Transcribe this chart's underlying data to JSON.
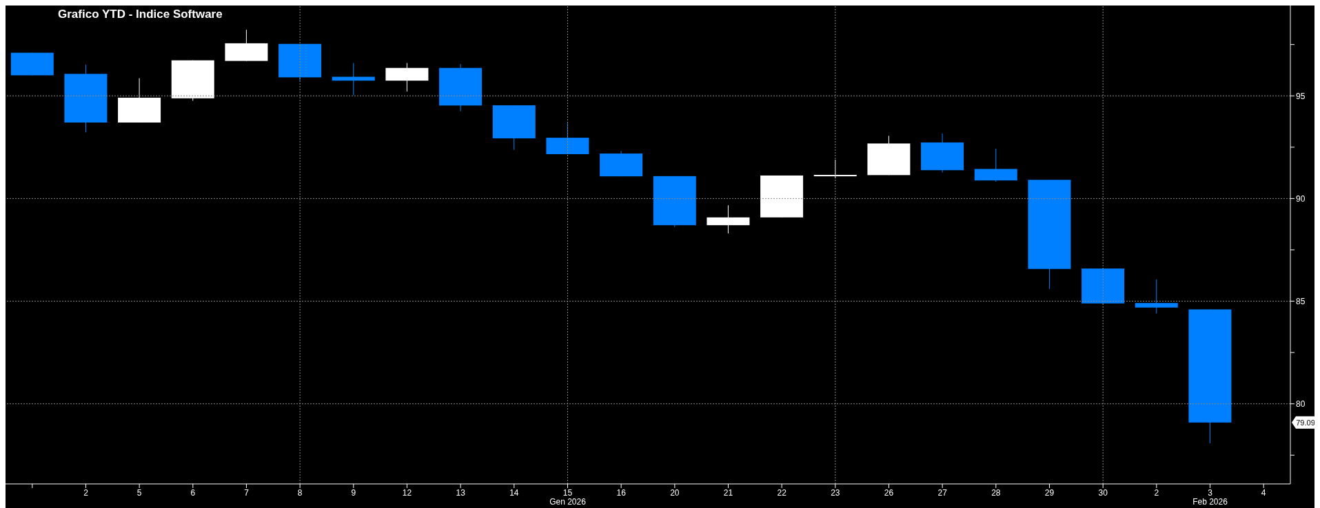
{
  "chart_data": {
    "type": "candlestick",
    "title": "Grafico YTD - Indice Software",
    "categories": [
      null,
      "2",
      "5",
      "6",
      "7",
      "8",
      "9",
      "12",
      "13",
      "14",
      "15",
      "16",
      "20",
      "21",
      "22",
      "23",
      "26",
      "27",
      "28",
      "29",
      "30",
      "2",
      "3",
      "4"
    ],
    "ohlc": [
      [
        97.1,
        97.1,
        96.0,
        96.0
      ],
      [
        96.07,
        96.52,
        93.22,
        93.7
      ],
      [
        93.7,
        95.86,
        93.7,
        94.91
      ],
      [
        94.88,
        96.73,
        94.76,
        96.73
      ],
      [
        96.7,
        98.22,
        96.7,
        97.56
      ],
      [
        97.53,
        97.53,
        95.74,
        95.9
      ],
      [
        95.93,
        96.6,
        95.03,
        95.74
      ],
      [
        95.74,
        96.6,
        95.21,
        96.36
      ],
      [
        96.36,
        96.55,
        94.25,
        94.53
      ],
      [
        94.54,
        94.54,
        92.37,
        92.93
      ],
      [
        92.96,
        93.7,
        92.16,
        92.16
      ],
      [
        92.19,
        92.31,
        91.08,
        91.08
      ],
      [
        91.09,
        91.09,
        88.62,
        88.7
      ],
      [
        88.7,
        89.67,
        88.3,
        89.08
      ],
      [
        89.08,
        91.12,
        89.08,
        91.12
      ],
      [
        91.15,
        91.89,
        90.98,
        91.15
      ],
      [
        91.14,
        93.05,
        91.14,
        92.68
      ],
      [
        92.73,
        93.16,
        91.27,
        91.38
      ],
      [
        91.44,
        92.43,
        90.82,
        90.88
      ],
      [
        90.91,
        90.91,
        85.6,
        86.57
      ],
      [
        86.59,
        86.59,
        84.85,
        84.89
      ],
      [
        84.91,
        86.06,
        84.4,
        84.69
      ],
      [
        84.6,
        84.6,
        78.08,
        79.09
      ],
      null
    ],
    "colors": [
      "#0080ff",
      "#0080ff",
      "#ffffff",
      "#ffffff",
      "#ffffff",
      "#0080ff",
      "#0080ff",
      "#ffffff",
      "#0080ff",
      "#0080ff",
      "#0080ff",
      "#0080ff",
      "#0080ff",
      "#ffffff",
      "#ffffff",
      "#ffffff",
      "#ffffff",
      "#0080ff",
      "#0080ff",
      "#0080ff",
      "#0080ff",
      "#0080ff",
      "#0080ff",
      null
    ],
    "ylim": [
      76.1,
      99.4
    ],
    "yticks": [
      {
        "value": 77.5,
        "label": null
      },
      80,
      {
        "value": 82.5,
        "label": null
      },
      85,
      {
        "value": 87.5,
        "label": null
      },
      90,
      {
        "value": 92.5,
        "label": null
      },
      95,
      {
        "value": 97.5,
        "label": null
      }
    ],
    "grid": true,
    "annotations": [
      "Gen 2026",
      "Feb 2026",
      "79.09"
    ]
  }
}
